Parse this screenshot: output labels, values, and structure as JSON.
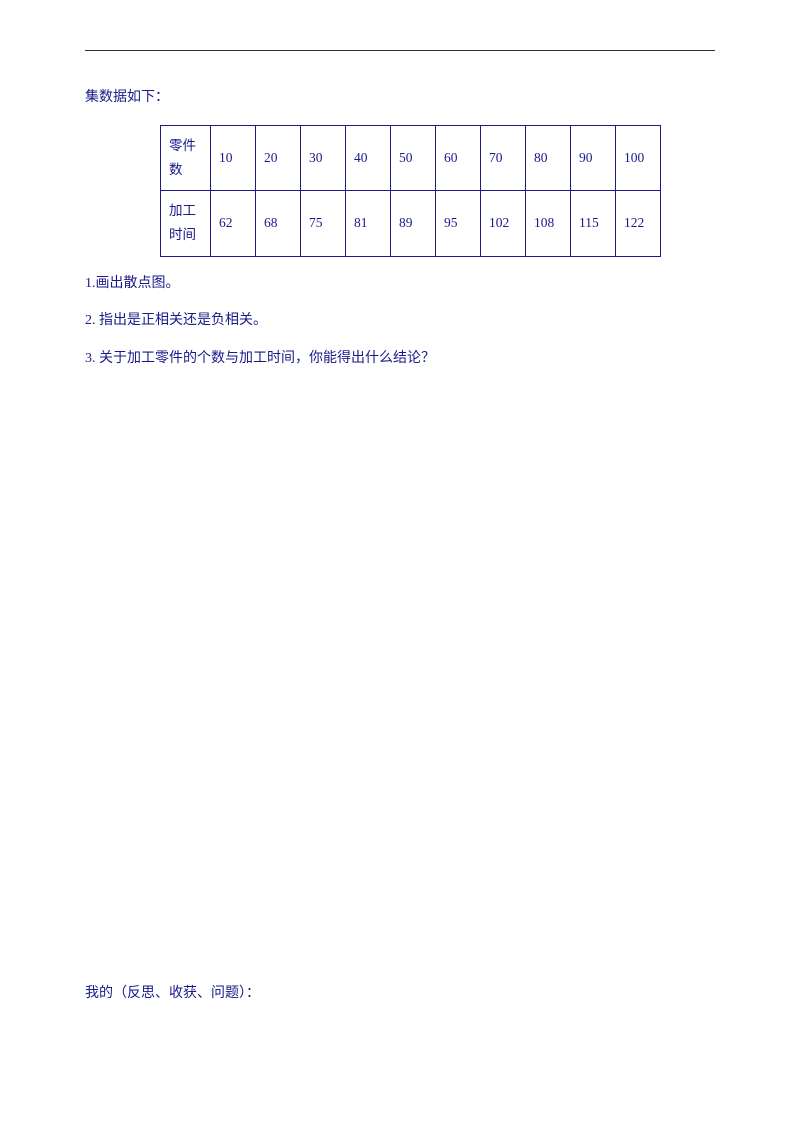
{
  "intro": "集数据如下：",
  "table": {
    "row1_label": "零件数",
    "row2_label": "加工时间",
    "row1_values": [
      "10",
      "20",
      "30",
      "40",
      "50",
      "60",
      "70",
      "80",
      "90",
      "100"
    ],
    "row2_values": [
      "62",
      "68",
      "75",
      "81",
      "89",
      "95",
      "102",
      "108",
      "115",
      "122"
    ],
    "border_color": "#1a1a8a",
    "text_color": "#1a1a8a"
  },
  "questions": {
    "q1": "1.画出散点图。",
    "q2": "2.  指出是正相关还是负相关。",
    "q3": "3.  关于加工零件的个数与加工时间，你能得出什么结论？"
  },
  "footer": "我的（反思、收获、问题）：",
  "colors": {
    "text": "#1a1a8a",
    "rule": "#333333",
    "background": "#ffffff"
  },
  "fontsize": {
    "body": 14,
    "table": 13.5
  }
}
